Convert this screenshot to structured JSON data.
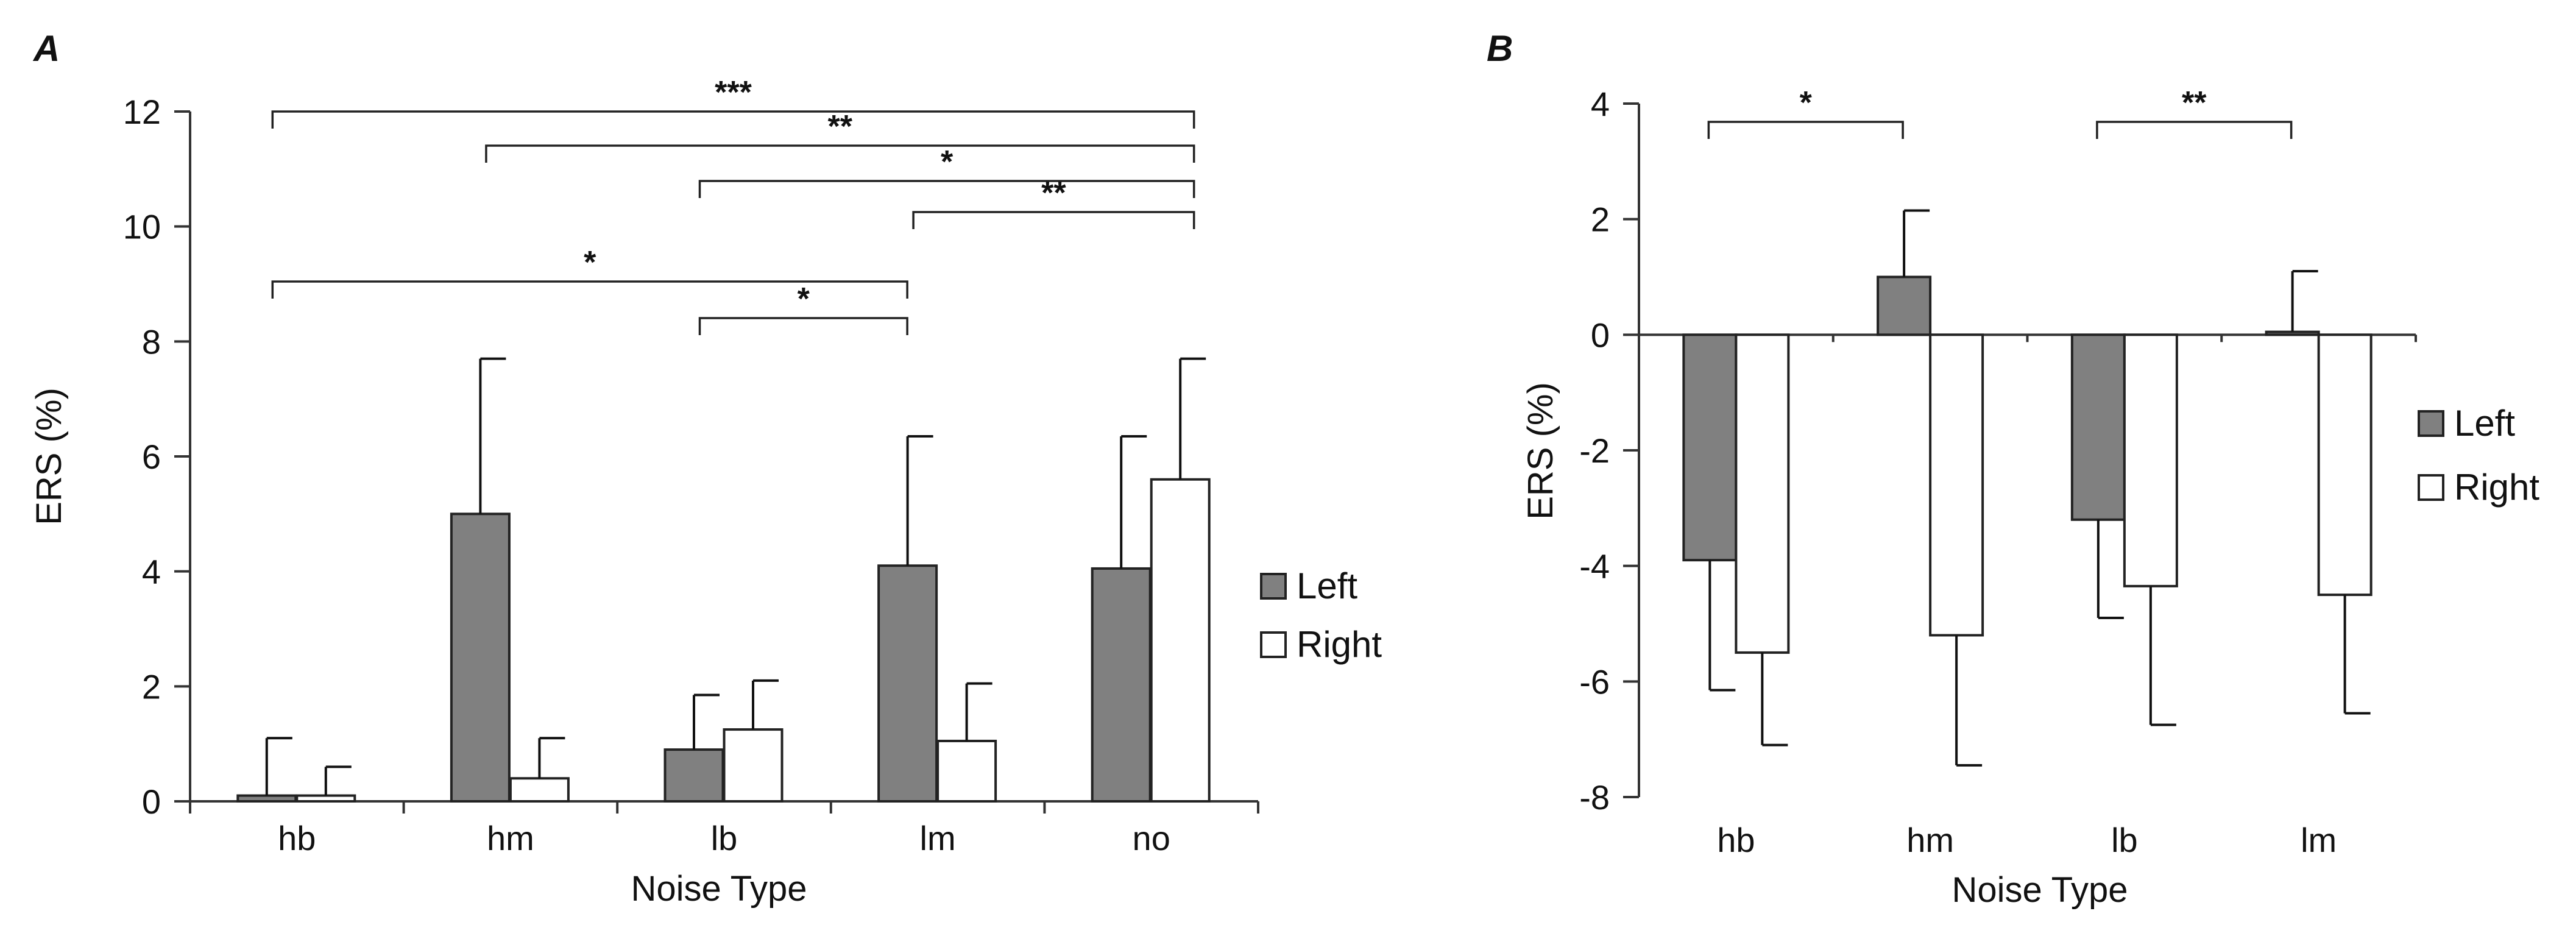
{
  "figure": {
    "colors": {
      "left_fill": "#808080",
      "right_fill": "#ffffff",
      "stroke": "#222222"
    }
  },
  "chart_data": [
    {
      "panel": "A",
      "type": "bar",
      "xlabel": "Noise Type",
      "ylabel": "ERS (%)",
      "ylim": [
        0,
        12
      ],
      "yticks": [
        0,
        2,
        4,
        6,
        8,
        10,
        12
      ],
      "grid": false,
      "legend_position": "right",
      "categories": [
        "hb",
        "hm",
        "lb",
        "lm",
        "no"
      ],
      "series": [
        {
          "name": "Left",
          "values": [
            0.1,
            5.0,
            0.9,
            4.1,
            4.05
          ],
          "error": [
            1.0,
            2.7,
            0.95,
            2.25,
            2.3
          ]
        },
        {
          "name": "Right",
          "values": [
            0.1,
            0.4,
            1.25,
            1.05,
            5.6
          ],
          "error": [
            0.5,
            0.7,
            0.85,
            1.0,
            2.1
          ]
        }
      ],
      "significance": [
        {
          "from": "hb",
          "to": "no",
          "label": "***"
        },
        {
          "from": "hm",
          "to": "no",
          "label": "**"
        },
        {
          "from": "lb",
          "to": "no",
          "label": "*"
        },
        {
          "from": "lm",
          "to": "no",
          "label": "**"
        },
        {
          "from": "hb",
          "to": "lm",
          "label": "*"
        },
        {
          "from": "lb",
          "to": "lm",
          "label": "*"
        }
      ]
    },
    {
      "panel": "B",
      "type": "bar",
      "xlabel": "Noise Type",
      "ylabel": "ERS (%)",
      "ylim": [
        -8,
        4
      ],
      "yticks": [
        4,
        2,
        0,
        -2,
        -4,
        -6,
        -8
      ],
      "grid": false,
      "legend_position": "right",
      "categories": [
        "hb",
        "hm",
        "lb",
        "lm"
      ],
      "series": [
        {
          "name": "Left",
          "values": [
            -3.9,
            1.0,
            -3.2,
            0.05
          ],
          "error": [
            2.25,
            1.15,
            1.7,
            1.05
          ]
        },
        {
          "name": "Right",
          "values": [
            -5.5,
            -5.2,
            -4.35,
            -4.5
          ],
          "error": [
            1.6,
            2.25,
            2.4,
            2.05
          ]
        }
      ],
      "significance": [
        {
          "from": "hb",
          "to": "hm",
          "label": "*"
        },
        {
          "from": "lb",
          "to": "lm",
          "label": "**"
        }
      ]
    }
  ]
}
